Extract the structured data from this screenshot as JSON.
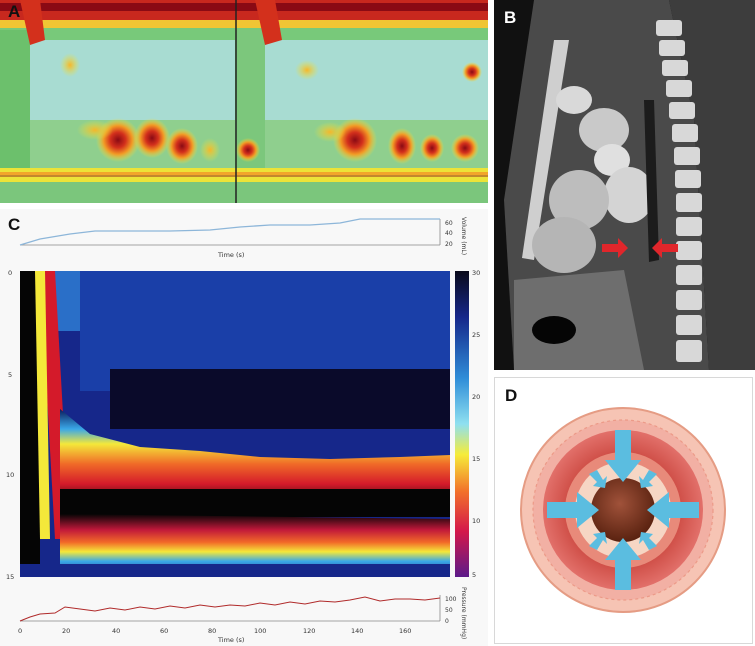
{
  "panels": {
    "a": {
      "label": "A"
    },
    "b": {
      "label": "B"
    },
    "c": {
      "label": "C"
    },
    "d": {
      "label": "D"
    }
  },
  "panel_c": {
    "volume_plot": {
      "xlabel": "Time (s)",
      "ylabel": "Volume (mL)",
      "y_ticks": [
        "60",
        "40",
        "20"
      ]
    },
    "pressure_plot": {
      "xlabel": "Time (s)",
      "ylabel": "Pressure (mmHg)",
      "y_ticks": [
        "100",
        "50",
        "0"
      ],
      "x_ticks": [
        "0",
        "20",
        "40",
        "60",
        "80",
        "100",
        "120",
        "140",
        "160"
      ]
    },
    "heatmap": {
      "y_ticks": [
        "0",
        "5",
        "10",
        "15"
      ],
      "colorbar_ticks": [
        "30",
        "25",
        "20",
        "15",
        "10",
        "5"
      ]
    }
  },
  "colors": {
    "arrow_red": "#e0262b",
    "arrow_blue": "#5bbde0",
    "volume_line": "#8db6d9",
    "pressure_line": "#b02a2a"
  }
}
